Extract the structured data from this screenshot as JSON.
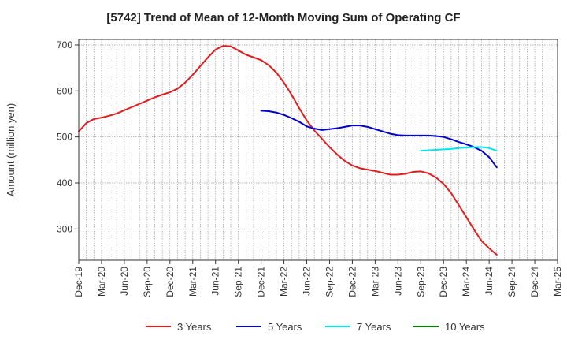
{
  "chart_data": {
    "type": "line",
    "title": "[5742]  Trend of Mean of 12-Month Moving Sum of Operating CF",
    "xlabel": "",
    "ylabel": "Amount (million yen)",
    "ylim": [
      232,
      712
    ],
    "yticks": [
      300,
      400,
      500,
      600,
      700
    ],
    "x_categories": [
      "Dec-19",
      "Mar-20",
      "Jun-20",
      "Sep-20",
      "Dec-20",
      "Mar-21",
      "Jun-21",
      "Sep-21",
      "Dec-21",
      "Mar-22",
      "Jun-22",
      "Sep-22",
      "Dec-22",
      "Mar-23",
      "Jun-23",
      "Sep-23",
      "Dec-23",
      "Mar-24",
      "Jun-24",
      "Sep-24",
      "Dec-24",
      "Mar-25"
    ],
    "x_unit": "month_index_from_Dec-19",
    "grid": true,
    "legend_position": "bottom",
    "series": [
      {
        "name": "3 Years",
        "color": "#e41a1c",
        "x": [
          0,
          1,
          2,
          3,
          4,
          5,
          6,
          7,
          8,
          9,
          10,
          11,
          12,
          13,
          14,
          15,
          16,
          17,
          18,
          19,
          20,
          21,
          22,
          23,
          24,
          25,
          26,
          27,
          28,
          29,
          30,
          31,
          32,
          33,
          34,
          35,
          36,
          37,
          38,
          39,
          40,
          41,
          42,
          43,
          44,
          45,
          46,
          47,
          48,
          49,
          50,
          51,
          52,
          53,
          54,
          55,
          56,
          57
        ],
        "y": [
          512,
          530,
          539,
          542,
          546,
          551,
          558,
          565,
          572,
          579,
          586,
          592,
          597,
          605,
          618,
          635,
          654,
          673,
          690,
          698,
          697,
          688,
          679,
          673,
          667,
          656,
          640,
          618,
          592,
          563,
          536,
          514,
          496,
          478,
          462,
          448,
          438,
          432,
          429,
          426,
          422,
          418,
          418,
          420,
          424,
          425,
          421,
          412,
          398,
          378,
          352,
          326,
          299,
          274,
          258,
          244,
          null,
          null
        ],
        "connect": true
      },
      {
        "name": "5 Years",
        "color": "#0000cd",
        "x": [
          24,
          25,
          26,
          27,
          28,
          29,
          30,
          31,
          32,
          33,
          34,
          35,
          36,
          37,
          38,
          39,
          40,
          41,
          42,
          43,
          44,
          45,
          46,
          47,
          48,
          49,
          50,
          51,
          52,
          53,
          54,
          55,
          56,
          57
        ],
        "y": [
          557,
          556,
          553,
          548,
          541,
          533,
          523,
          518,
          515,
          517,
          519,
          522,
          525,
          525,
          522,
          517,
          512,
          507,
          504,
          503,
          503,
          503,
          503,
          502,
          500,
          495,
          489,
          484,
          478,
          470,
          456,
          434,
          null,
          null
        ]
      },
      {
        "name": "7 Years",
        "color": "#00e5ee",
        "x": [
          45,
          46,
          47,
          48,
          49,
          50,
          51,
          52,
          53,
          54,
          55
        ],
        "y": [
          470,
          471,
          472,
          473,
          474,
          476,
          477,
          478,
          478,
          476,
          470
        ]
      },
      {
        "name": "10 Years",
        "color": "#008000",
        "x": [],
        "y": []
      }
    ]
  }
}
